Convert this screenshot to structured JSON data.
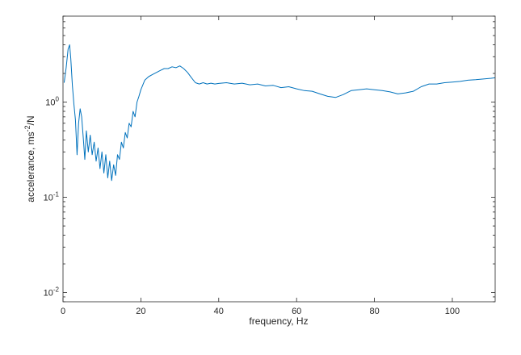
{
  "chart_data": {
    "type": "line",
    "title": "",
    "xlabel": "frequency, Hz",
    "ylabel_parts": {
      "pre": "accelerance, ms",
      "sup": "-2",
      "post": "/N"
    },
    "xscale": "linear",
    "yscale": "log",
    "xlim": [
      0,
      111
    ],
    "ylim": [
      0.008,
      8
    ],
    "grid": false,
    "box": true,
    "xticks": [
      0,
      20,
      40,
      60,
      80,
      100
    ],
    "xtick_labels": [
      "0",
      "20",
      "40",
      "60",
      "80",
      "100"
    ],
    "yticks": [
      0.01,
      0.1,
      1
    ],
    "ytick_labels": [
      {
        "base": "10",
        "exp": "-2"
      },
      {
        "base": "10",
        "exp": "-1"
      },
      {
        "base": "10",
        "exp": "0"
      }
    ],
    "series": [
      {
        "color": "#0072BD",
        "x": [
          0.3,
          0.8,
          1.3,
          1.7,
          2.0,
          2.4,
          2.8,
          3.2,
          3.6,
          4.0,
          4.4,
          4.8,
          5.2,
          5.6,
          6.0,
          6.5,
          7.0,
          7.5,
          8.0,
          8.5,
          9.0,
          9.5,
          10.0,
          10.5,
          11.0,
          11.5,
          12.0,
          12.5,
          13.0,
          13.5,
          14.0,
          14.5,
          15.0,
          15.5,
          16.0,
          16.5,
          17.0,
          17.5,
          18.0,
          18.5,
          19.0,
          19.5,
          20.0,
          21.0,
          22.0,
          23.0,
          24.0,
          25.0,
          26.0,
          27.0,
          28.0,
          29.0,
          30.0,
          31.0,
          32.0,
          33.0,
          34.0,
          35.0,
          36.0,
          37.0,
          38.0,
          39.0,
          40.0,
          42.0,
          44.0,
          46.0,
          48.0,
          50.0,
          52.0,
          54.0,
          56.0,
          58.0,
          60.0,
          62.0,
          64.0,
          66.0,
          68.0,
          70.0,
          72.0,
          74.0,
          76.0,
          78.0,
          80.0,
          82.0,
          84.0,
          86.0,
          88.0,
          90.0,
          92.0,
          94.0,
          96.0,
          98.0,
          100.0,
          102.0,
          104.0,
          106.0,
          108.0,
          110.0,
          111.0
        ],
        "y": [
          1.6,
          2.3,
          3.6,
          4.0,
          2.9,
          1.5,
          0.95,
          0.65,
          0.28,
          0.6,
          0.85,
          0.7,
          0.42,
          0.25,
          0.5,
          0.3,
          0.45,
          0.28,
          0.38,
          0.24,
          0.33,
          0.2,
          0.3,
          0.18,
          0.28,
          0.16,
          0.24,
          0.15,
          0.22,
          0.17,
          0.28,
          0.25,
          0.38,
          0.33,
          0.48,
          0.42,
          0.6,
          0.55,
          0.8,
          0.7,
          1.0,
          1.15,
          1.35,
          1.7,
          1.85,
          1.95,
          2.05,
          2.15,
          2.25,
          2.25,
          2.35,
          2.3,
          2.4,
          2.25,
          2.05,
          1.8,
          1.6,
          1.55,
          1.6,
          1.55,
          1.58,
          1.55,
          1.57,
          1.6,
          1.55,
          1.58,
          1.52,
          1.55,
          1.48,
          1.5,
          1.42,
          1.45,
          1.38,
          1.32,
          1.3,
          1.22,
          1.15,
          1.12,
          1.2,
          1.32,
          1.35,
          1.38,
          1.35,
          1.32,
          1.28,
          1.22,
          1.25,
          1.3,
          1.45,
          1.55,
          1.55,
          1.6,
          1.62,
          1.65,
          1.7,
          1.72,
          1.75,
          1.78,
          1.8
        ]
      }
    ]
  }
}
